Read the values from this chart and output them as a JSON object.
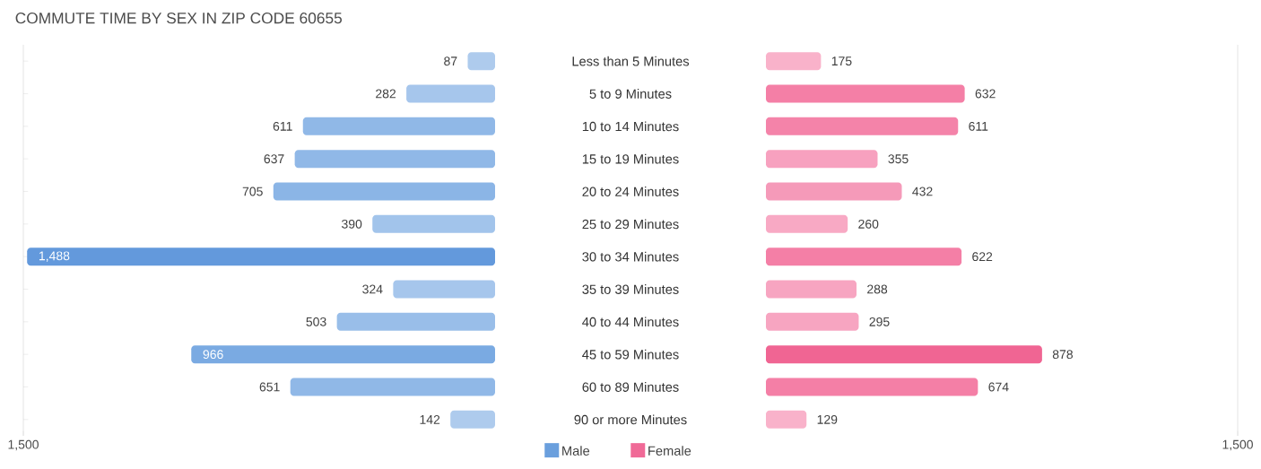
{
  "chart_data": [
    {
      "type": "bar",
      "orientation": "horizontal",
      "title": "COMMUTE TIME BY SEX IN ZIP CODE 60655",
      "categories": [
        "Less than 5 Minutes",
        "5 to 9 Minutes",
        "10 to 14 Minutes",
        "15 to 19 Minutes",
        "20 to 24 Minutes",
        "25 to 29 Minutes",
        "30 to 34 Minutes",
        "35 to 39 Minutes",
        "40 to 44 Minutes",
        "45 to 59 Minutes",
        "60 to 89 Minutes",
        "90 or more Minutes"
      ],
      "series": [
        {
          "name": "Male",
          "color": "#6a9fdd",
          "values": [
            87,
            282,
            611,
            637,
            705,
            390,
            1488,
            324,
            503,
            966,
            651,
            142
          ],
          "value_labels": [
            "87",
            "282",
            "611",
            "637",
            "705",
            "390",
            "1,488",
            "324",
            "503",
            "966",
            "651",
            "142"
          ],
          "colors": [
            "#aecbed",
            "#a6c6ec",
            "#90b8e7",
            "#90b8e7",
            "#8bb5e6",
            "#a2c4eb",
            "#6399dc",
            "#a6c6ec",
            "#99bee9",
            "#7aaae2",
            "#90b8e7",
            "#aecbed"
          ]
        }
      ],
      "xlim": [
        1500,
        0
      ],
      "xticks": [
        {
          "value": 1500,
          "label": "1,500"
        }
      ],
      "legend": "bottom"
    },
    {
      "type": "bar",
      "orientation": "horizontal",
      "tick_labels": "x",
      "categories": [
        null,
        null,
        null,
        null,
        null,
        null,
        null,
        null,
        null,
        null,
        null,
        null
      ],
      "series": [
        {
          "name": "Female",
          "color": "#f06a97",
          "values": [
            175,
            632,
            611,
            355,
            432,
            260,
            622,
            288,
            295,
            878,
            674,
            129
          ],
          "value_labels": [
            "175",
            "632",
            "611",
            "355",
            "432",
            "260",
            "622",
            "288",
            "295",
            "878",
            "674",
            "129"
          ],
          "colors": [
            "#f9b2ca",
            "#f47fa6",
            "#f483a9",
            "#f7a1bf",
            "#f59ab9",
            "#f8a9c4",
            "#f47fa6",
            "#f7a5c1",
            "#f7a5c1",
            "#f06593",
            "#f47fa6",
            "#f9b2ca"
          ]
        }
      ],
      "xlim": [
        0,
        1500
      ],
      "xticks": [
        {
          "value": 1500,
          "label": "1,500"
        }
      ],
      "legend": "bottom"
    }
  ]
}
